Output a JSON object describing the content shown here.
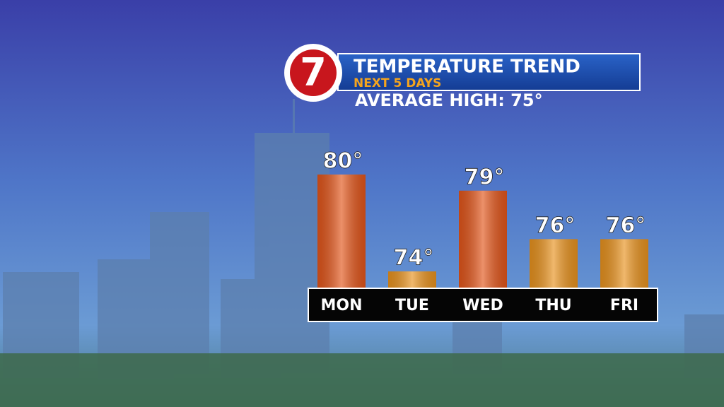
{
  "logo": "7",
  "chart_data": {
    "type": "bar",
    "title": "TEMPERATURE TREND",
    "subtitle": "NEXT 5 DAYS",
    "annotation": "AVERAGE HIGH: 75°",
    "categories": [
      "MON",
      "TUE",
      "WED",
      "THU",
      "FRI"
    ],
    "values": [
      80,
      74,
      79,
      76,
      76
    ],
    "value_labels": [
      "80°",
      "74°",
      "79°",
      "76°",
      "76°"
    ],
    "colors": [
      "#e2551a",
      "#e8921e",
      "#e2551a",
      "#e8921e",
      "#e8921e"
    ],
    "ylim": [
      73,
      80
    ]
  }
}
